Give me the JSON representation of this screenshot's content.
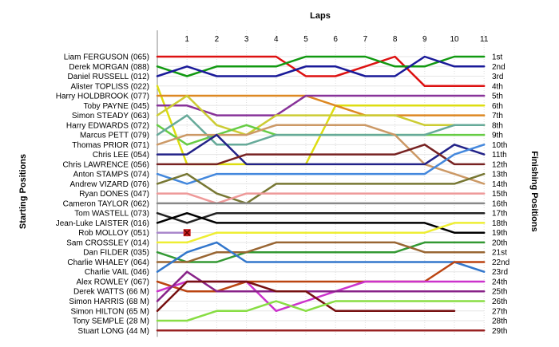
{
  "chart_data": {
    "type": "line",
    "title": "",
    "xlabel": "Laps",
    "ylabel_left": "Starting Positions",
    "ylabel_right": "Finishing Positions",
    "laps": [
      1,
      2,
      3,
      4,
      5,
      6,
      7,
      8,
      9,
      10,
      11
    ],
    "xlim": [
      0,
      11
    ],
    "ylim": [
      1,
      29
    ],
    "grid": true,
    "starting_positions": [
      "Liam FERGUSON (065)",
      "Derek MORGAN (088)",
      "Daniel RUSSELL (012)",
      "Alister TOPLISS (022)",
      "Harry HOLDBROOK (077)",
      "Toby PAYNE (045)",
      "Simon STEADY (063)",
      "Harry EDWARDS (072)",
      "Marcus PETT (079)",
      "Thomas PRIOR (071)",
      "Chris LEE (054)",
      "Chris LAWRENCE (056)",
      "Anton STAMPS (074)",
      "Andrew VIZARD (076)",
      "Ryan DONES (047)",
      "Cameron TAYLOR (062)",
      "Tom WASTELL (073)",
      "Jean-Luke LAISTER (016)",
      "Rob MOLLOY (051)",
      "Sam CROSSLEY (014)",
      "Dan FILDER (035)",
      "Charlie WHALEY (064)",
      "Charlie VAIL (046)",
      "Alex ROWLEY (067)",
      "Derek WATTS (66 M)",
      "Simon HARRIS (68 M)",
      "Simon HILTON (65 M)",
      "Tony SEMPLE (28 M)",
      "Stuart LONG (44 M)"
    ],
    "finishing_positions": [
      "1st",
      "2nd",
      "3rd",
      "4th",
      "5th",
      "6th",
      "7th",
      "8th",
      "9th",
      "10th",
      "11th",
      "12th",
      "13th",
      "14th",
      "15th",
      "16th",
      "17th",
      "18th",
      "19th",
      "20th",
      "21st",
      "22nd",
      "23rd",
      "24th",
      "25th",
      "26th",
      "27th",
      "28th",
      "29th"
    ],
    "series": [
      {
        "color": "#dd1111",
        "positions": [
          1,
          1,
          1,
          1,
          1,
          3,
          3,
          2,
          1,
          4,
          4,
          4
        ]
      },
      {
        "color": "#119911",
        "positions": [
          2,
          3,
          2,
          2,
          2,
          1,
          1,
          1,
          2,
          2,
          1,
          1
        ]
      },
      {
        "color": "#1a1a99",
        "positions": [
          3,
          2,
          3,
          3,
          3,
          2,
          2,
          3,
          3,
          1,
          2,
          2
        ]
      },
      {
        "color": "#dddd11",
        "positions": [
          4,
          12,
          12,
          12,
          12,
          12,
          6,
          6,
          6,
          6,
          6,
          6
        ]
      },
      {
        "color": "#dd8822",
        "positions": [
          5,
          5,
          5,
          5,
          5,
          5,
          6,
          7,
          7,
          7,
          7,
          7
        ]
      },
      {
        "color": "#883399",
        "positions": [
          6,
          6,
          7,
          7,
          7,
          5,
          5,
          5,
          5,
          5,
          5,
          5
        ]
      },
      {
        "color": "#cccc33",
        "positions": [
          7,
          5,
          8,
          9,
          7,
          7,
          7,
          7,
          7,
          8,
          8,
          8
        ]
      },
      {
        "color": "#66cc44",
        "positions": [
          8,
          10,
          9,
          8,
          9,
          9,
          9,
          9,
          9,
          9,
          9,
          9
        ]
      },
      {
        "color": "#66aa99",
        "positions": [
          9,
          7,
          10,
          10,
          9,
          9,
          9,
          9,
          9,
          9,
          8,
          8
        ]
      },
      {
        "color": "#cc9966",
        "positions": [
          10,
          9,
          9,
          9,
          8,
          8,
          8,
          8,
          9,
          12,
          13,
          14
        ]
      },
      {
        "color": "#222288",
        "positions": [
          11,
          11,
          9,
          12,
          12,
          12,
          12,
          12,
          12,
          12,
          10,
          11
        ]
      },
      {
        "color": "#772222",
        "positions": [
          12,
          12,
          12,
          11,
          11,
          11,
          11,
          11,
          11,
          10,
          12,
          12
        ]
      },
      {
        "color": "#4488dd",
        "positions": [
          13,
          14,
          13,
          13,
          13,
          13,
          13,
          13,
          13,
          13,
          11,
          10
        ]
      },
      {
        "color": "#777733",
        "positions": [
          14,
          13,
          15,
          16,
          14,
          14,
          14,
          14,
          14,
          14,
          14,
          13
        ]
      },
      {
        "color": "#ee9999",
        "positions": [
          15,
          15,
          16,
          15,
          15,
          15,
          15,
          15,
          15,
          15,
          15,
          15
        ]
      },
      {
        "color": "#888888",
        "positions": [
          16,
          16,
          16,
          16,
          16,
          16,
          16,
          16,
          16,
          16,
          16,
          16
        ]
      },
      {
        "color": "#222222",
        "positions": [
          17,
          18,
          17,
          17,
          17,
          17,
          17,
          17,
          17,
          17,
          17,
          17
        ]
      },
      {
        "color": "#000000",
        "positions": [
          18,
          17,
          18,
          18,
          18,
          18,
          18,
          18,
          18,
          18,
          19,
          19
        ]
      },
      {
        "color": "#aa88cc",
        "positions": [
          19,
          19
        ]
      },
      {
        "color": "#eeee33",
        "positions": [
          20,
          20,
          19,
          19,
          19,
          19,
          19,
          19,
          19,
          19,
          18,
          18
        ]
      },
      {
        "color": "#339933",
        "positions": [
          21,
          22,
          22,
          21,
          21,
          21,
          21,
          21,
          21,
          20,
          20,
          20
        ]
      },
      {
        "color": "#996633",
        "positions": [
          22,
          22,
          21,
          21,
          20,
          20,
          20,
          20,
          20,
          21,
          21,
          21
        ]
      },
      {
        "color": "#3377cc",
        "positions": [
          23,
          21,
          20,
          22,
          22,
          22,
          22,
          22,
          22,
          22,
          22,
          23
        ]
      },
      {
        "color": "#bb4411",
        "positions": [
          24,
          25,
          25,
          24,
          24,
          24,
          24,
          24,
          24,
          24,
          22,
          22
        ]
      },
      {
        "color": "#cc33cc",
        "positions": [
          25,
          24,
          24,
          24,
          27,
          26,
          25,
          24,
          24,
          24,
          24,
          24
        ]
      },
      {
        "color": "#882288",
        "positions": [
          26,
          23,
          25,
          25,
          25,
          25,
          25,
          25,
          25,
          25,
          25,
          25
        ]
      },
      {
        "color": "#771111",
        "positions": [
          27,
          24,
          24,
          24,
          25,
          25,
          27,
          27,
          27,
          27,
          27
        ]
      },
      {
        "color": "#88dd44",
        "positions": [
          28,
          28,
          27,
          27,
          26,
          27,
          26,
          26,
          26,
          26,
          26,
          26
        ]
      },
      {
        "color": "#992222",
        "positions": [
          29,
          29,
          29,
          29,
          29,
          29,
          29,
          29,
          29,
          29,
          29,
          29
        ]
      }
    ],
    "retirement_marker": {
      "driver": "Rob MOLLOY (051)",
      "lap": 1,
      "position": 19,
      "color": "#cc2222"
    }
  }
}
